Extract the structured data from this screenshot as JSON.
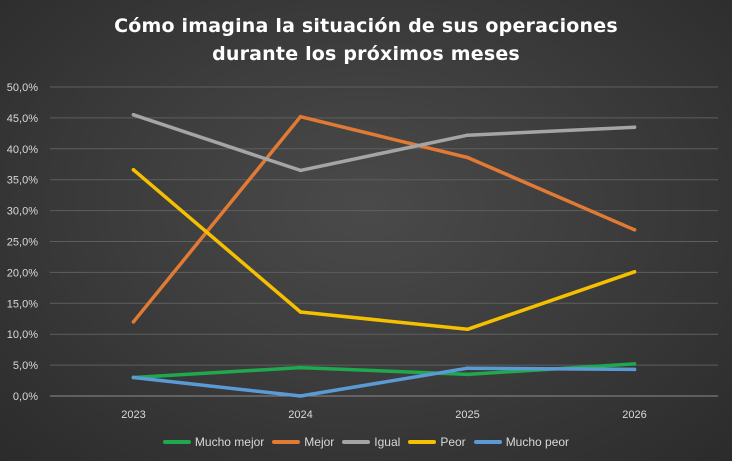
{
  "chart_data": {
    "type": "line",
    "title_lines": [
      "Cómo imagina la situación de sus operaciones",
      "durante los próximos meses"
    ],
    "xlabel": "",
    "ylabel": "",
    "categories": [
      "2023",
      "2024",
      "2025",
      "2026"
    ],
    "ylim": [
      0,
      50
    ],
    "yticks": [
      0,
      5,
      10,
      15,
      20,
      25,
      30,
      35,
      40,
      45,
      50
    ],
    "ytick_labels": [
      "0,0%",
      "5,0%",
      "10,0%",
      "15,0%",
      "20,0%",
      "25,0%",
      "30,0%",
      "35,0%",
      "40,0%",
      "45,0%",
      "50,0%"
    ],
    "grid": true,
    "legend_position": "bottom",
    "series": [
      {
        "name": "Mucho mejor",
        "color": "#1fa84d",
        "values": [
          3.0,
          4.6,
          3.5,
          5.2
        ]
      },
      {
        "name": "Mejor",
        "color": "#e07a34",
        "values": [
          12.0,
          45.2,
          38.6,
          26.9
        ]
      },
      {
        "name": "Igual",
        "color": "#a5a5a5",
        "values": [
          45.5,
          36.5,
          42.2,
          43.5
        ]
      },
      {
        "name": "Peor",
        "color": "#f5c000",
        "values": [
          36.6,
          13.6,
          10.8,
          20.1
        ]
      },
      {
        "name": "Mucho peor",
        "color": "#5b9bd5",
        "values": [
          3.0,
          0.0,
          4.5,
          4.3
        ]
      }
    ]
  }
}
